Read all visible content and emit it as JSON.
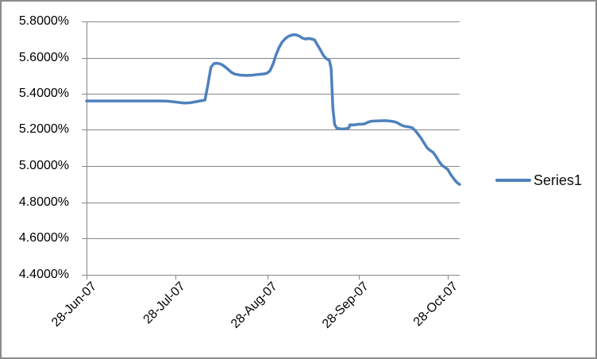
{
  "chart": {
    "background": "#FFFFFF",
    "border_color": "#8B8B8B",
    "axis_color": "#878787",
    "gridline_color": "#878787",
    "text_color": "#000000"
  },
  "legend": {
    "label": "Series1",
    "swatch_color": "#4F81BD"
  },
  "chart_data": {
    "type": "line",
    "title": "",
    "xlabel": "",
    "ylabel": "",
    "x_unit": "days since 28-Jun-07",
    "xlim_days": [
      0,
      126
    ],
    "ylim": [
      4.4,
      5.8
    ],
    "y_tick_step": 0.2,
    "grid": "horizontal-major-on",
    "legend_position": "right-center",
    "y_ticks": [
      {
        "value": 5.8,
        "label": "5.8000%"
      },
      {
        "value": 5.6,
        "label": "5.6000%"
      },
      {
        "value": 5.4,
        "label": "5.4000%"
      },
      {
        "value": 5.2,
        "label": "5.2000%"
      },
      {
        "value": 5.0,
        "label": "5.0000%"
      },
      {
        "value": 4.8,
        "label": "4.8000%"
      },
      {
        "value": 4.6,
        "label": "4.6000%"
      },
      {
        "value": 4.4,
        "label": "4.4000%"
      }
    ],
    "x_ticks": [
      {
        "day": 0,
        "label": "28-Jun-07"
      },
      {
        "day": 30,
        "label": "28-Jul-07"
      },
      {
        "day": 61,
        "label": "28-Aug-07"
      },
      {
        "day": 92,
        "label": "28-Sep-07"
      },
      {
        "day": 122,
        "label": "28-Oct-07"
      }
    ],
    "series": [
      {
        "name": "Series1",
        "color": "#4F81BD",
        "line_width": 3.5,
        "points_day_pct": [
          [
            0,
            5.36
          ],
          [
            3,
            5.36
          ],
          [
            6,
            5.36
          ],
          [
            9,
            5.36
          ],
          [
            12,
            5.36
          ],
          [
            15,
            5.36
          ],
          [
            18,
            5.36
          ],
          [
            21,
            5.36
          ],
          [
            24,
            5.36
          ],
          [
            27,
            5.359
          ],
          [
            29,
            5.356
          ],
          [
            31,
            5.352
          ],
          [
            33,
            5.348
          ],
          [
            35,
            5.35
          ],
          [
            37,
            5.356
          ],
          [
            39,
            5.362
          ],
          [
            40,
            5.365
          ],
          [
            41,
            5.45
          ],
          [
            42,
            5.545
          ],
          [
            43,
            5.567
          ],
          [
            44,
            5.569
          ],
          [
            45,
            5.566
          ],
          [
            46,
            5.558
          ],
          [
            47,
            5.546
          ],
          [
            48,
            5.532
          ],
          [
            49,
            5.518
          ],
          [
            50,
            5.509
          ],
          [
            52,
            5.503
          ],
          [
            54,
            5.501
          ],
          [
            56,
            5.503
          ],
          [
            58,
            5.507
          ],
          [
            60,
            5.51
          ],
          [
            61,
            5.514
          ],
          [
            62,
            5.528
          ],
          [
            63,
            5.565
          ],
          [
            64,
            5.615
          ],
          [
            65,
            5.655
          ],
          [
            66,
            5.684
          ],
          [
            67,
            5.703
          ],
          [
            68,
            5.716
          ],
          [
            69,
            5.723
          ],
          [
            70,
            5.727
          ],
          [
            71,
            5.725
          ],
          [
            72,
            5.718
          ],
          [
            73,
            5.707
          ],
          [
            74,
            5.703
          ],
          [
            75,
            5.706
          ],
          [
            76,
            5.703
          ],
          [
            77,
            5.698
          ],
          [
            78,
            5.67
          ],
          [
            79,
            5.642
          ],
          [
            80,
            5.612
          ],
          [
            81,
            5.594
          ],
          [
            82,
            5.585
          ],
          [
            82.6,
            5.54
          ],
          [
            83.2,
            5.32
          ],
          [
            83.8,
            5.23
          ],
          [
            84.5,
            5.21
          ],
          [
            85.5,
            5.206
          ],
          [
            86.5,
            5.205
          ],
          [
            87.5,
            5.206
          ],
          [
            88.5,
            5.21
          ],
          [
            89,
            5.228
          ],
          [
            90,
            5.227
          ],
          [
            91,
            5.229
          ],
          [
            92,
            5.231
          ],
          [
            93,
            5.231
          ],
          [
            94,
            5.234
          ],
          [
            95,
            5.242
          ],
          [
            96,
            5.247
          ],
          [
            97,
            5.249
          ],
          [
            99,
            5.25
          ],
          [
            101,
            5.251
          ],
          [
            103,
            5.248
          ],
          [
            104,
            5.245
          ],
          [
            105,
            5.239
          ],
          [
            106,
            5.229
          ],
          [
            107,
            5.222
          ],
          [
            108,
            5.218
          ],
          [
            109,
            5.216
          ],
          [
            110,
            5.212
          ],
          [
            111,
            5.196
          ],
          [
            112,
            5.176
          ],
          [
            113,
            5.154
          ],
          [
            114,
            5.127
          ],
          [
            115,
            5.101
          ],
          [
            116,
            5.087
          ],
          [
            117,
            5.076
          ],
          [
            118,
            5.054
          ],
          [
            119,
            5.027
          ],
          [
            120,
            5.005
          ],
          [
            121,
            4.993
          ],
          [
            122,
            4.981
          ],
          [
            123,
            4.953
          ],
          [
            124,
            4.93
          ],
          [
            125,
            4.91
          ],
          [
            126,
            4.898
          ]
        ]
      }
    ]
  }
}
